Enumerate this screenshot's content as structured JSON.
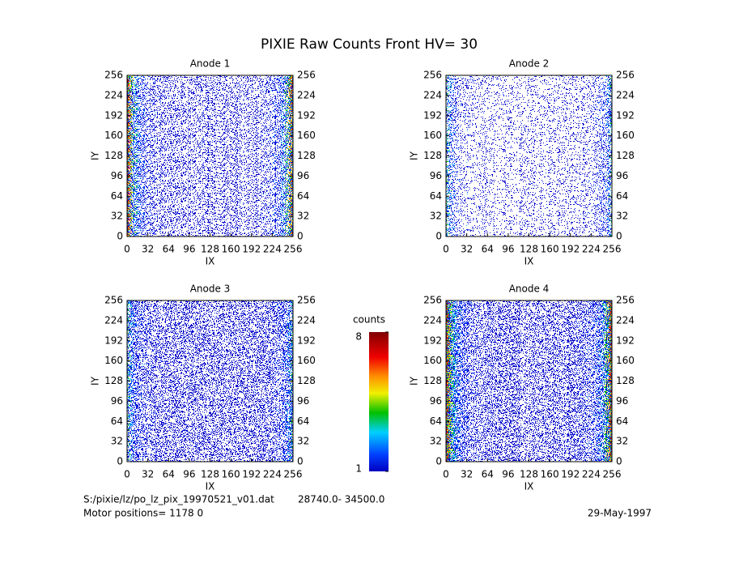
{
  "title": "PIXIE Raw Counts Front HV= 30",
  "chart_data": [
    {
      "type": "heatmap",
      "title": "Anode 1",
      "xlabel": "IX",
      "ylabel": "IY",
      "xlim": [
        0,
        256
      ],
      "ylim": [
        0,
        256
      ],
      "xticks": [
        0,
        32,
        64,
        96,
        128,
        160,
        192,
        224,
        256
      ],
      "yticks": [
        0,
        32,
        64,
        96,
        128,
        160,
        192,
        224,
        256
      ]
    },
    {
      "type": "heatmap",
      "title": "Anode 2",
      "xlabel": "IX",
      "ylabel": "IY",
      "xlim": [
        0,
        256
      ],
      "ylim": [
        0,
        256
      ],
      "xticks": [
        0,
        32,
        64,
        96,
        128,
        160,
        192,
        224,
        256
      ],
      "yticks": [
        0,
        32,
        64,
        96,
        128,
        160,
        192,
        224,
        256
      ]
    },
    {
      "type": "heatmap",
      "title": "Anode 3",
      "xlabel": "IX",
      "ylabel": "IY",
      "xlim": [
        0,
        256
      ],
      "ylim": [
        0,
        256
      ],
      "xticks": [
        0,
        32,
        64,
        96,
        128,
        160,
        192,
        224,
        256
      ],
      "yticks": [
        0,
        32,
        64,
        96,
        128,
        160,
        192,
        224,
        256
      ]
    },
    {
      "type": "heatmap",
      "title": "Anode 4",
      "xlabel": "IX",
      "ylabel": "IY",
      "xlim": [
        0,
        256
      ],
      "ylim": [
        0,
        256
      ],
      "xticks": [
        0,
        32,
        64,
        96,
        128,
        160,
        192,
        224,
        256
      ],
      "yticks": [
        0,
        32,
        64,
        96,
        128,
        160,
        192,
        224,
        256
      ]
    }
  ],
  "colorbar": {
    "label": "counts",
    "lim": [
      1,
      8
    ],
    "ticks": [
      1,
      8
    ]
  },
  "footer": {
    "file": "S:/pixie/lz/po_lz_pix_19970521_v01.dat",
    "range": "28740.0- 34500.0",
    "motor": "Motor positions= 1178  0",
    "date": "29-May-1997"
  }
}
